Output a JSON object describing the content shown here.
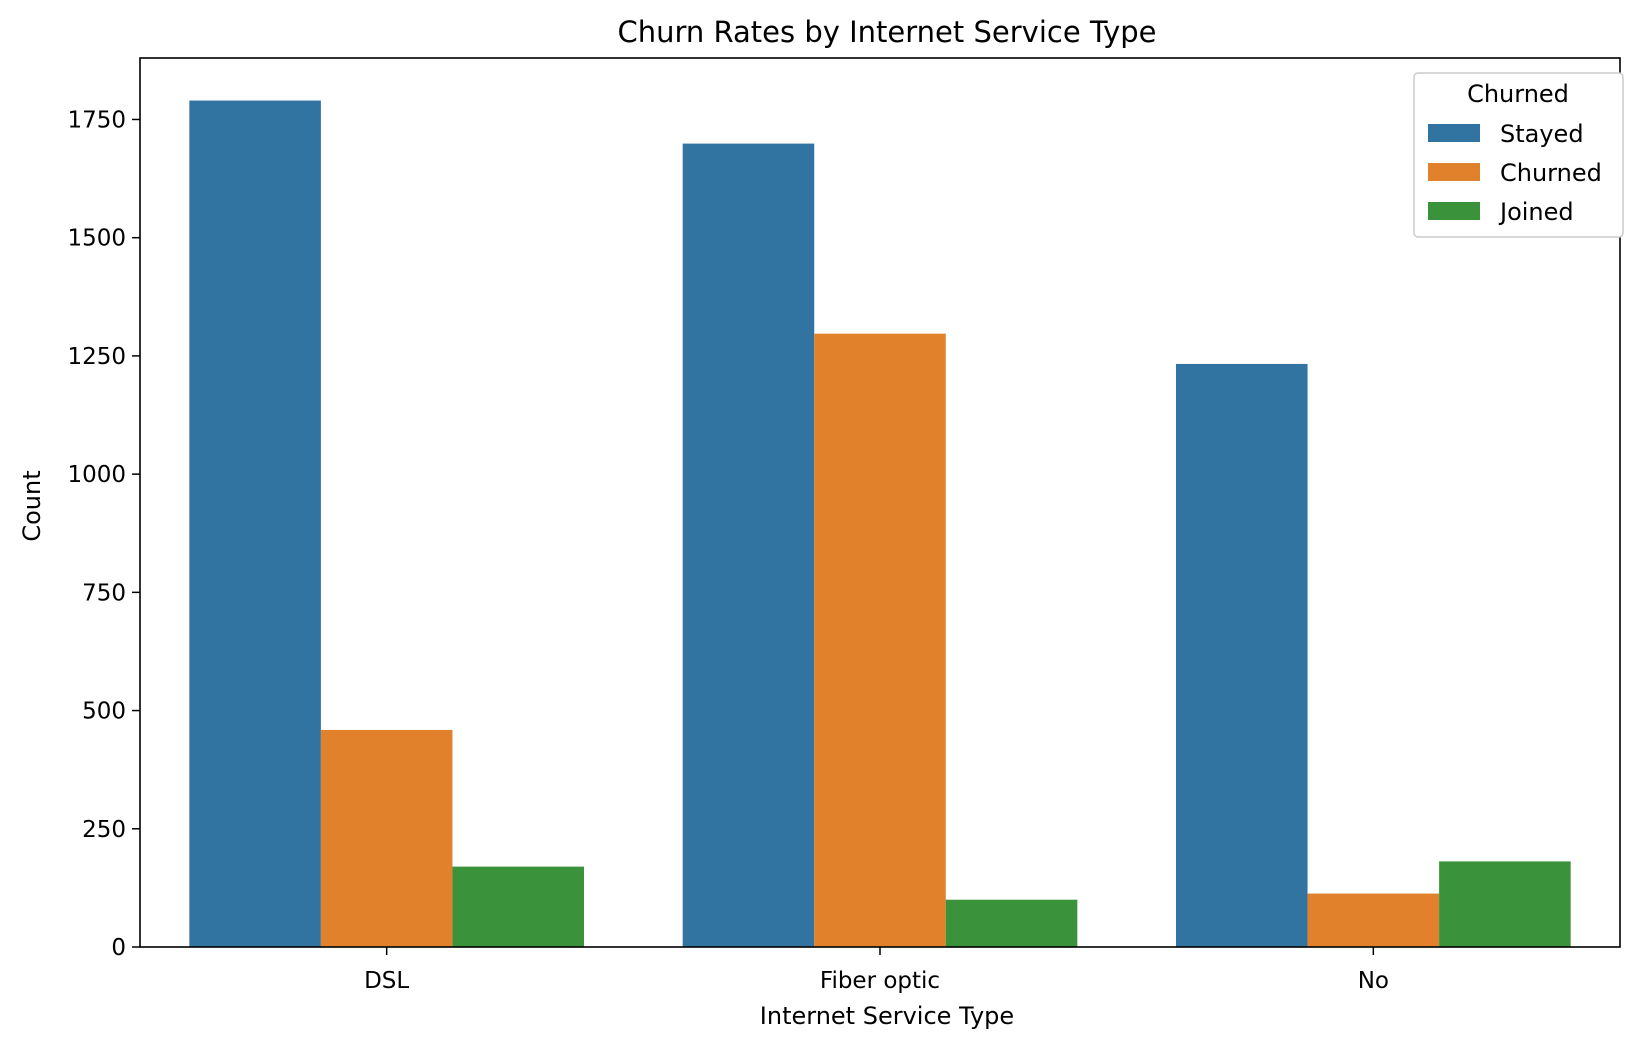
{
  "chart_data": {
    "type": "bar",
    "title": "Churn Rates by Internet Service Type",
    "xlabel": "Internet Service Type",
    "ylabel": "Count",
    "categories": [
      "DSL",
      "Fiber optic",
      "No"
    ],
    "series": [
      {
        "name": "Stayed",
        "color": "#3274a1",
        "values": [
          1790,
          1699,
          1233
        ]
      },
      {
        "name": "Churned",
        "color": "#e1812c",
        "values": [
          459,
          1297,
          113
        ]
      },
      {
        "name": "Joined",
        "color": "#3a923a",
        "values": [
          170,
          100,
          181
        ]
      }
    ],
    "ylim": [
      0,
      1880
    ],
    "yticks": [
      0,
      250,
      500,
      750,
      1000,
      1250,
      1500,
      1750
    ],
    "grid": false,
    "legend": {
      "title": "Churned",
      "placement": "top-right"
    }
  }
}
